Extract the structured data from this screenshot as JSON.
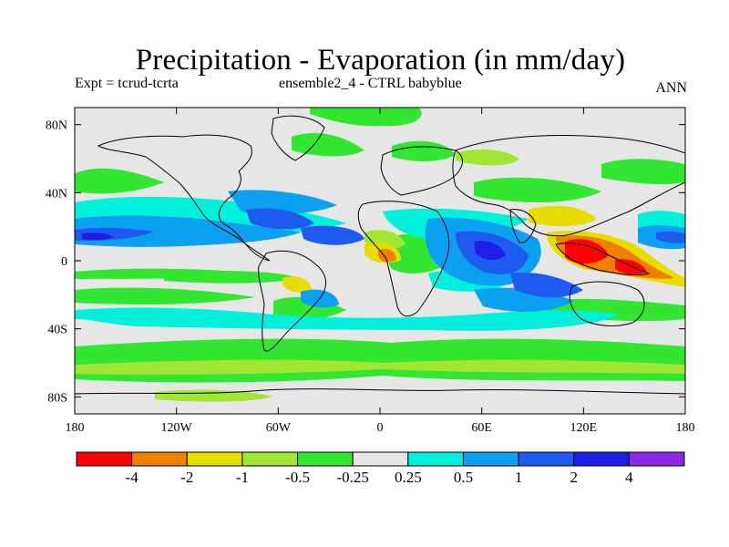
{
  "title": "Precipitation - Evaporation (in mm/day)",
  "subtitle_left": "Expt = tcrud-tcrta",
  "subtitle_center": "ensemble2_4 - CTRL babyblue",
  "subtitle_right": "ANN",
  "map": {
    "lon_range": [
      -180,
      180
    ],
    "lat_range": [
      -90,
      90
    ],
    "background_color": "#e6e6e6",
    "coastline_color": "#000000",
    "lat_ticks": [
      {
        "value": 80,
        "label": "80N"
      },
      {
        "value": 40,
        "label": "40N"
      },
      {
        "value": 0,
        "label": "0"
      },
      {
        "value": -40,
        "label": "40S"
      },
      {
        "value": -80,
        "label": "80S"
      }
    ],
    "lon_ticks": [
      {
        "value": -180,
        "label": "180"
      },
      {
        "value": -120,
        "label": "120W"
      },
      {
        "value": -60,
        "label": "60W"
      },
      {
        "value": 0,
        "label": "0"
      },
      {
        "value": 60,
        "label": "60E"
      },
      {
        "value": 120,
        "label": "120E"
      },
      {
        "value": 180,
        "label": "180"
      }
    ]
  },
  "colorbar": {
    "colors": [
      "#ff0000",
      "#f08000",
      "#e6dc00",
      "#a0e632",
      "#32e632",
      "#e6e6e6",
      "#00f0dc",
      "#0ca0f0",
      "#1e5af0",
      "#1e1ee6",
      "#8c28e6"
    ],
    "labels": [
      "-4",
      "-2",
      "-1",
      "-0.5",
      "-0.25",
      "0.25",
      "0.5",
      "1",
      "2",
      "4"
    ]
  }
}
